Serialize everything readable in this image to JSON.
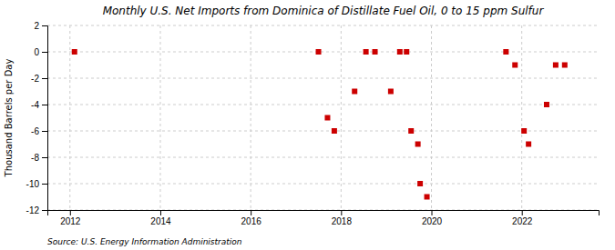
{
  "chart_data": {
    "type": "scatter",
    "title": "Monthly U.S. Net Imports from Dominica of Distillate Fuel Oil, 0 to 15 ppm Sulfur",
    "y_label": "Thousand Barrels per Day",
    "annotations": [
      "Source: U.S. Energy Information Administration"
    ],
    "x": [
      2012.1,
      2017.5,
      2017.7,
      2017.85,
      2018.3,
      2018.55,
      2018.75,
      2019.1,
      2019.3,
      2019.45,
      2019.55,
      2019.7,
      2019.75,
      2019.9,
      2021.65,
      2021.85,
      2022.05,
      2022.15,
      2022.55,
      2022.75,
      2022.95
    ],
    "values": [
      0,
      0,
      -5,
      -6,
      -3,
      0,
      0,
      -3,
      0,
      0,
      -6,
      -7,
      -10,
      -11,
      0,
      -1,
      -6,
      -7,
      -4,
      -1,
      -1
    ],
    "color": "#cc0000",
    "marker": "square",
    "xlim": [
      2011.5,
      2023.7
    ],
    "ylim": [
      -12,
      2
    ],
    "xticks": [
      2012,
      2014,
      2016,
      2018,
      2020,
      2022
    ],
    "yticks": [
      2,
      0,
      -2,
      -4,
      -6,
      -8,
      -10,
      -12
    ],
    "grid": true
  }
}
